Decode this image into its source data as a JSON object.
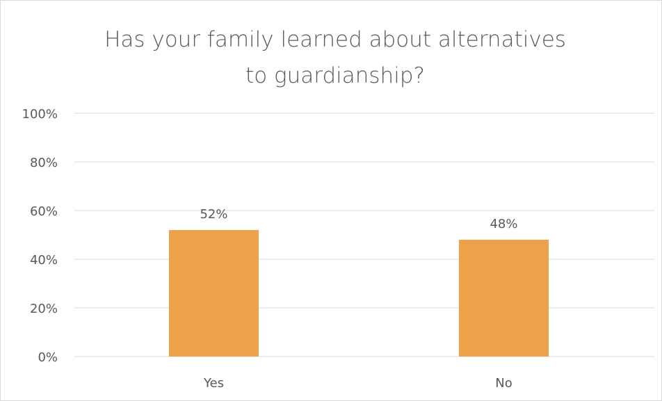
{
  "chart_data": {
    "type": "bar",
    "title_lines": [
      "Has your family learned about alternatives",
      "to guardianship?"
    ],
    "categories": [
      "Yes",
      "No"
    ],
    "values": [
      52,
      48
    ],
    "data_labels": [
      "52%",
      "48%"
    ],
    "ylim": [
      0,
      100
    ],
    "yticks": [
      0,
      20,
      40,
      60,
      80,
      100
    ],
    "ytick_labels": [
      "0%",
      "20%",
      "40%",
      "60%",
      "80%",
      "100%"
    ],
    "grid": true,
    "legend": "none",
    "bar_color": "#EDA24A",
    "grid_color": "#D9D9D9",
    "text_color": "#595959"
  }
}
